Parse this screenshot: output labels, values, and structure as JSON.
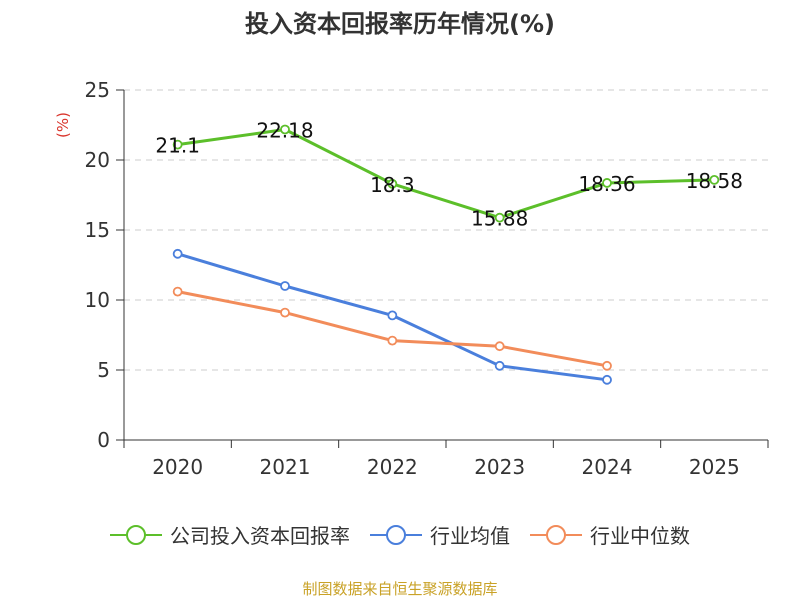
{
  "title": "投入资本回报率历年情况(%)",
  "source": "制图数据来自恒生聚源数据库",
  "chart_data": {
    "type": "line",
    "title": "投入资本回报率历年情况(%)",
    "ylabel": "(%)",
    "xlabel": "",
    "categories": [
      "2020",
      "2021",
      "2022",
      "2023",
      "2024",
      "2025"
    ],
    "ylim": [
      0,
      25
    ],
    "yticks": [
      0,
      5,
      10,
      15,
      20,
      25
    ],
    "grid": true,
    "legend_position": "bottom",
    "series": [
      {
        "name": "公司投入资本回报率",
        "color": "#5cbf2a",
        "values": [
          21.1,
          22.18,
          18.3,
          15.88,
          18.36,
          18.58
        ],
        "labels": [
          "21.1",
          "22.18",
          "18.3",
          "15.88",
          "18.36",
          "18.58"
        ]
      },
      {
        "name": "行业均值",
        "color": "#4a7fdc",
        "values": [
          13.3,
          11.0,
          8.9,
          5.3,
          4.3,
          null
        ]
      },
      {
        "name": "行业中位数",
        "color": "#f28c5a",
        "values": [
          10.6,
          9.1,
          7.1,
          6.7,
          5.3,
          null
        ]
      }
    ]
  }
}
